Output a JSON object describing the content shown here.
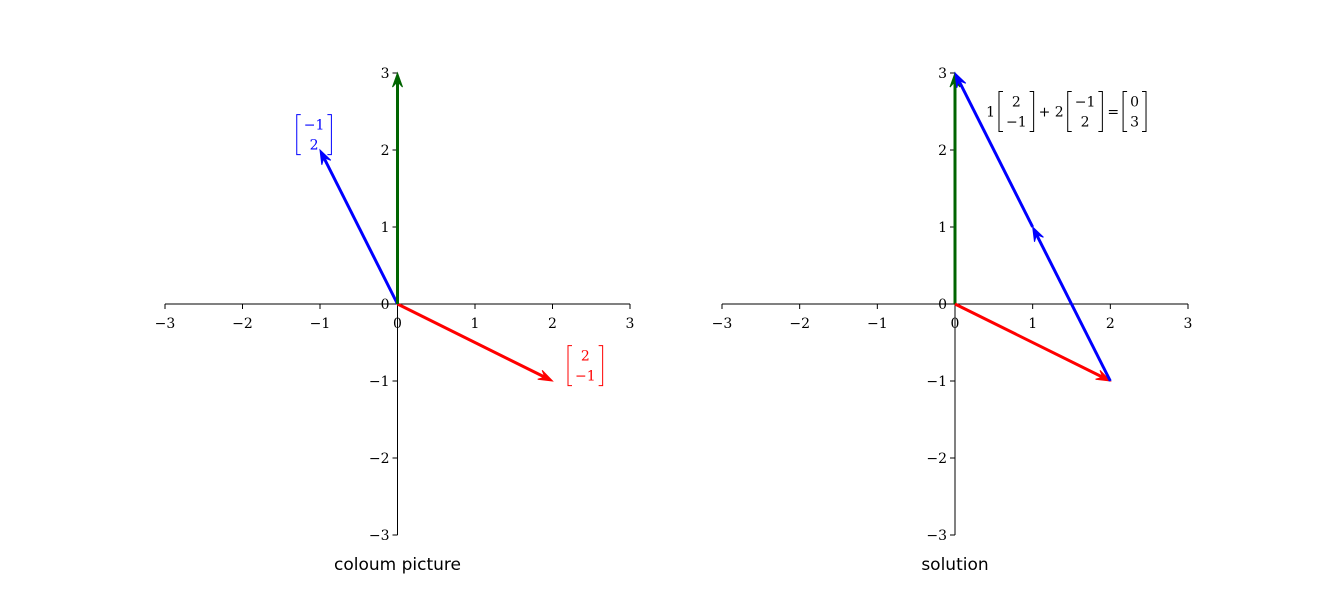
{
  "chart_data": [
    {
      "type": "vector",
      "title": "coloum picture",
      "xlim": [
        -3,
        3
      ],
      "ylim": [
        -3,
        3
      ],
      "xticks": [
        -3,
        -2,
        -1,
        0,
        1,
        2,
        3
      ],
      "yticks": [
        -3,
        -2,
        -1,
        0,
        1,
        2,
        3
      ],
      "xtick_labels": [
        "−3",
        "−2",
        "−1",
        "0",
        "1",
        "2",
        "3"
      ],
      "ytick_labels": [
        "−3",
        "−2",
        "−1",
        "0",
        "1",
        "2",
        "3"
      ],
      "grid": false,
      "vectors": [
        {
          "from": [
            0,
            0
          ],
          "to": [
            2,
            -1
          ],
          "color": "#ff0000"
        },
        {
          "from": [
            0,
            0
          ],
          "to": [
            -1,
            2
          ],
          "color": "#0000ff"
        },
        {
          "from": [
            0,
            0
          ],
          "to": [
            0,
            3
          ],
          "color": "#006400"
        }
      ],
      "annotations": [
        {
          "kind": "column",
          "entries": [
            "2",
            "−1"
          ],
          "color": "#ff0000",
          "anchor": [
            2.2,
            -0.8
          ]
        },
        {
          "kind": "column",
          "entries": [
            "−1",
            "2"
          ],
          "color": "#0000ff",
          "anchor": [
            -1.3,
            2.2
          ]
        }
      ]
    },
    {
      "type": "vector",
      "title": "solution",
      "xlim": [
        -3,
        3
      ],
      "ylim": [
        -3,
        3
      ],
      "xticks": [
        -3,
        -2,
        -1,
        0,
        1,
        2,
        3
      ],
      "yticks": [
        -3,
        -2,
        -1,
        0,
        1,
        2,
        3
      ],
      "xtick_labels": [
        "−3",
        "−2",
        "−1",
        "0",
        "1",
        "2",
        "3"
      ],
      "ytick_labels": [
        "−3",
        "−2",
        "−1",
        "0",
        "1",
        "2",
        "3"
      ],
      "grid": false,
      "vectors": [
        {
          "from": [
            0,
            0
          ],
          "to": [
            0,
            3
          ],
          "color": "#006400"
        },
        {
          "from": [
            0,
            0
          ],
          "to": [
            2,
            -1
          ],
          "color": "#ff0000"
        },
        {
          "from": [
            2,
            -1
          ],
          "to": [
            1,
            1
          ],
          "color": "#0000ff"
        },
        {
          "from": [
            1,
            1
          ],
          "to": [
            0,
            3
          ],
          "color": "#0000ff"
        }
      ],
      "equation": {
        "color": "#000000",
        "anchor": [
          0.4,
          2.5
        ],
        "terms": [
          {
            "kind": "text",
            "value": "1"
          },
          {
            "kind": "column",
            "entries": [
              "2",
              "−1"
            ]
          },
          {
            "kind": "text",
            "value": "+ 2"
          },
          {
            "kind": "column",
            "entries": [
              "−1",
              "2"
            ]
          },
          {
            "kind": "text",
            "value": "="
          },
          {
            "kind": "column",
            "entries": [
              "0",
              "3"
            ]
          }
        ]
      }
    }
  ]
}
